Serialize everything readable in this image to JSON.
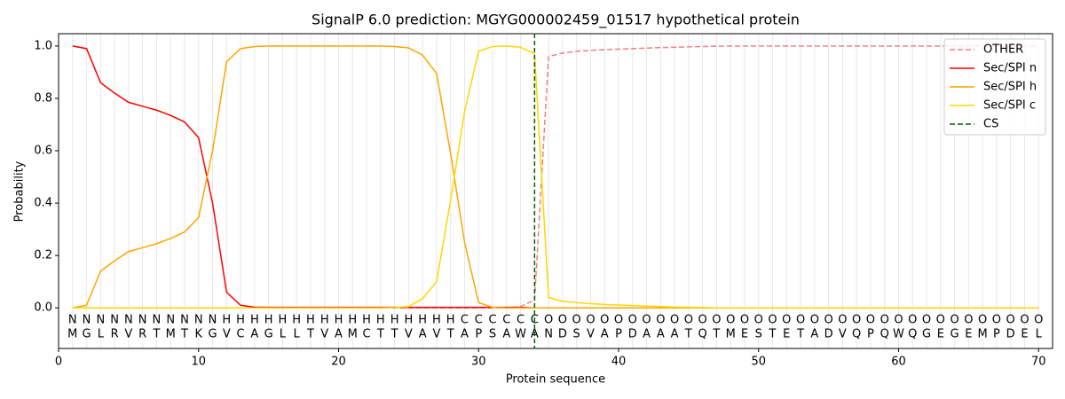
{
  "chart_data": {
    "type": "line",
    "title": "SignalP 6.0 prediction: MGYG000002459_01517 hypothetical protein",
    "x_label": "Protein sequence",
    "y_label": "Probability",
    "x": [
      1,
      2,
      3,
      4,
      5,
      6,
      7,
      8,
      9,
      10,
      11,
      12,
      13,
      14,
      15,
      16,
      17,
      18,
      19,
      20,
      21,
      22,
      23,
      24,
      25,
      26,
      27,
      28,
      29,
      30,
      31,
      32,
      33,
      34,
      35,
      36,
      37,
      38,
      39,
      40,
      41,
      42,
      43,
      44,
      45,
      46,
      47,
      48,
      49,
      50,
      51,
      52,
      53,
      54,
      55,
      56,
      57,
      58,
      59,
      60,
      61,
      62,
      63,
      64,
      65,
      66,
      67,
      68,
      69,
      70
    ],
    "residues": [
      "M",
      "G",
      "L",
      "R",
      "V",
      "R",
      "T",
      "M",
      "T",
      "K",
      "G",
      "V",
      "C",
      "A",
      "G",
      "L",
      "L",
      "T",
      "V",
      "A",
      "M",
      "C",
      "T",
      "T",
      "V",
      "A",
      "V",
      "T",
      "A",
      "P",
      "S",
      "A",
      "W",
      "A",
      "N",
      "D",
      "S",
      "V",
      "A",
      "P",
      "D",
      "A",
      "A",
      "A",
      "T",
      "Q",
      "T",
      "M",
      "E",
      "S",
      "T",
      "E",
      "T",
      "A",
      "D",
      "V",
      "Q",
      "P",
      "Q",
      "W",
      "Q",
      "G",
      "E",
      "G",
      "E",
      "M",
      "P",
      "D",
      "E",
      "L"
    ],
    "labels": [
      "N",
      "N",
      "N",
      "N",
      "N",
      "N",
      "N",
      "N",
      "N",
      "N",
      "N",
      "H",
      "H",
      "H",
      "H",
      "H",
      "H",
      "H",
      "H",
      "H",
      "H",
      "H",
      "H",
      "H",
      "H",
      "H",
      "H",
      "H",
      "C",
      "C",
      "C",
      "C",
      "C",
      "C",
      "O",
      "O",
      "O",
      "O",
      "O",
      "O",
      "O",
      "O",
      "O",
      "O",
      "O",
      "O",
      "O",
      "O",
      "O",
      "O",
      "O",
      "O",
      "O",
      "O",
      "O",
      "O",
      "O",
      "O",
      "O",
      "O",
      "O",
      "O",
      "O",
      "O",
      "O",
      "O",
      "O",
      "O",
      "O",
      "O"
    ],
    "label_colors": {
      "N": "#ff0000",
      "H": "#ffa500",
      "C": "#ffd700",
      "O": "#808080"
    },
    "series": [
      {
        "name": "OTHER",
        "color": "#f08080",
        "dashed": true,
        "values": [
          0,
          0,
          0,
          0,
          0,
          0,
          0,
          0,
          0,
          0,
          0,
          0,
          0,
          0,
          0,
          0,
          0,
          0,
          0,
          0,
          0,
          0,
          0,
          0,
          0,
          0,
          0,
          0,
          0,
          0,
          0,
          0,
          0.005,
          0.03,
          0.96,
          0.973,
          0.98,
          0.983,
          0.986,
          0.988,
          0.99,
          0.992,
          0.994,
          0.995,
          0.997,
          0.998,
          0.999,
          1,
          1,
          1,
          1,
          1,
          1,
          1,
          1,
          1,
          1,
          1,
          1,
          1,
          1,
          1,
          1,
          1,
          1,
          1,
          1,
          1,
          1,
          1
        ]
      },
      {
        "name": "Sec/SPI n",
        "color": "#ff0000",
        "dashed": false,
        "values": [
          1.0,
          0.99,
          0.86,
          0.82,
          0.785,
          0.77,
          0.755,
          0.735,
          0.71,
          0.65,
          0.4,
          0.06,
          0.01,
          0.003,
          0.002,
          0.002,
          0.002,
          0.002,
          0.002,
          0.002,
          0.002,
          0.002,
          0.002,
          0.002,
          0.002,
          0.002,
          0.002,
          0.002,
          0.002,
          0.002,
          0.002,
          0.002,
          0.002,
          0,
          0,
          0,
          0,
          0,
          0,
          0,
          0,
          0,
          0,
          0,
          0,
          0,
          0,
          0,
          0,
          0,
          0,
          0,
          0,
          0,
          0,
          0,
          0,
          0,
          0,
          0,
          0,
          0,
          0,
          0,
          0,
          0,
          0,
          0,
          0,
          0
        ]
      },
      {
        "name": "Sec/SPI h",
        "color": "#ffa500",
        "dashed": false,
        "values": [
          0,
          0.01,
          0.14,
          0.18,
          0.215,
          0.23,
          0.245,
          0.265,
          0.29,
          0.345,
          0.6,
          0.94,
          0.99,
          0.998,
          1,
          1,
          1,
          1,
          1,
          1,
          1,
          1,
          1,
          0.998,
          0.993,
          0.965,
          0.895,
          0.59,
          0.25,
          0.02,
          0.002,
          0,
          0,
          0,
          0,
          0,
          0,
          0,
          0,
          0,
          0,
          0,
          0,
          0,
          0,
          0,
          0,
          0,
          0,
          0,
          0,
          0,
          0,
          0,
          0,
          0,
          0,
          0,
          0,
          0,
          0,
          0,
          0,
          0,
          0,
          0,
          0,
          0,
          0,
          0
        ]
      },
      {
        "name": "Sec/SPI c",
        "color": "#ffd700",
        "dashed": false,
        "values": [
          0,
          0,
          0,
          0,
          0,
          0,
          0,
          0,
          0,
          0,
          0,
          0,
          0,
          0,
          0,
          0,
          0,
          0,
          0,
          0,
          0,
          0,
          0,
          0.001,
          0.005,
          0.035,
          0.1,
          0.41,
          0.75,
          0.98,
          0.998,
          1.0,
          0.995,
          0.97,
          0.04,
          0.025,
          0.02,
          0.016,
          0.013,
          0.011,
          0.009,
          0.007,
          0.005,
          0.003,
          0.002,
          0.001,
          0,
          0,
          0,
          0,
          0,
          0,
          0,
          0,
          0,
          0,
          0,
          0,
          0,
          0,
          0,
          0,
          0,
          0,
          0,
          0,
          0,
          0,
          0,
          0
        ]
      }
    ],
    "cs": {
      "name": "CS",
      "position": 34,
      "color": "#006400"
    },
    "xlim": [
      0,
      71
    ],
    "ylim": [
      -0.155,
      1.047
    ],
    "xticks": [
      0,
      10,
      20,
      30,
      40,
      50,
      60,
      70
    ],
    "yticks": [
      {
        "value": 0,
        "label": "0.0"
      },
      {
        "value": 0.2,
        "label": "0.2"
      },
      {
        "value": 0.4,
        "label": "0.4"
      },
      {
        "value": 0.6,
        "label": "0.6"
      },
      {
        "value": 0.8,
        "label": "0.8"
      },
      {
        "value": 1.0,
        "label": "1.0"
      }
    ],
    "grid": true,
    "legend": "upper right"
  }
}
